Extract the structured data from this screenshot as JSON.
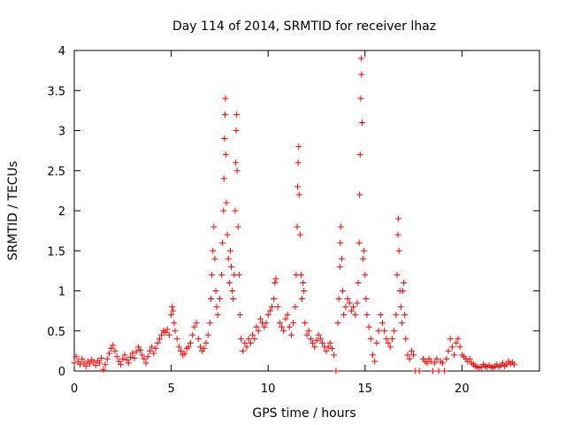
{
  "chart_data": {
    "type": "scatter",
    "title": "Day 114 of 2014, SRMTID for receiver lhaz",
    "xlabel": "GPS time / hours",
    "ylabel": "SRMTID / TECUs",
    "xlim": [
      0,
      24
    ],
    "ylim": [
      0,
      4
    ],
    "xticks": [
      0,
      5,
      10,
      15,
      20
    ],
    "xtick_labels": [
      "0",
      "5",
      "10",
      "15",
      "20"
    ],
    "yticks": [
      0,
      0.5,
      1,
      1.5,
      2,
      2.5,
      3,
      3.5,
      4
    ],
    "ytick_labels": [
      "0",
      "0.5",
      "1",
      "1.5",
      "2",
      "2.5",
      "3",
      "3.5",
      "4"
    ],
    "grid": false,
    "marker": "+",
    "marker_color": "#ff0000",
    "series": [
      {
        "name": "SRMTID",
        "points": [
          [
            0.0,
            0.1
          ],
          [
            0.1,
            0.18
          ],
          [
            0.2,
            0.12
          ],
          [
            0.3,
            0.08
          ],
          [
            0.4,
            0.15
          ],
          [
            0.5,
            0.1
          ],
          [
            0.6,
            0.06
          ],
          [
            0.7,
            0.12
          ],
          [
            0.8,
            0.09
          ],
          [
            0.9,
            0.14
          ],
          [
            1.0,
            0.11
          ],
          [
            1.1,
            0.07
          ],
          [
            1.2,
            0.13
          ],
          [
            1.3,
            0.1
          ],
          [
            1.4,
            0.16
          ],
          [
            1.5,
            0.02
          ],
          [
            1.6,
            0.08
          ],
          [
            1.7,
            0.15
          ],
          [
            1.8,
            0.22
          ],
          [
            1.9,
            0.28
          ],
          [
            2.0,
            0.32
          ],
          [
            2.1,
            0.25
          ],
          [
            2.2,
            0.18
          ],
          [
            2.3,
            0.12
          ],
          [
            2.4,
            0.08
          ],
          [
            2.5,
            0.15
          ],
          [
            2.6,
            0.2
          ],
          [
            2.7,
            0.14
          ],
          [
            2.8,
            0.1
          ],
          [
            2.9,
            0.17
          ],
          [
            3.0,
            0.22
          ],
          [
            3.1,
            0.16
          ],
          [
            3.2,
            0.24
          ],
          [
            3.3,
            0.3
          ],
          [
            3.4,
            0.26
          ],
          [
            3.5,
            0.2
          ],
          [
            3.6,
            0.15
          ],
          [
            3.7,
            0.1
          ],
          [
            3.8,
            0.18
          ],
          [
            3.9,
            0.25
          ],
          [
            4.0,
            0.3
          ],
          [
            4.1,
            0.22
          ],
          [
            4.2,
            0.28
          ],
          [
            4.3,
            0.35
          ],
          [
            4.4,
            0.4
          ],
          [
            4.5,
            0.45
          ],
          [
            4.6,
            0.5
          ],
          [
            4.7,
            0.48
          ],
          [
            4.8,
            0.52
          ],
          [
            4.9,
            0.45
          ],
          [
            5.0,
            0.7
          ],
          [
            5.05,
            0.8
          ],
          [
            5.1,
            0.75
          ],
          [
            5.15,
            0.6
          ],
          [
            5.2,
            0.5
          ],
          [
            5.3,
            0.4
          ],
          [
            5.4,
            0.3
          ],
          [
            5.5,
            0.25
          ],
          [
            5.6,
            0.2
          ],
          [
            5.7,
            0.22
          ],
          [
            5.8,
            0.28
          ],
          [
            5.9,
            0.3
          ],
          [
            6.0,
            0.35
          ],
          [
            6.1,
            0.45
          ],
          [
            6.2,
            0.55
          ],
          [
            6.3,
            0.6
          ],
          [
            6.4,
            0.4
          ],
          [
            6.5,
            0.3
          ],
          [
            6.6,
            0.25
          ],
          [
            6.7,
            0.28
          ],
          [
            6.8,
            0.35
          ],
          [
            6.9,
            0.45
          ],
          [
            7.0,
            0.6
          ],
          [
            7.05,
            0.9
          ],
          [
            7.1,
            1.2
          ],
          [
            7.15,
            1.5
          ],
          [
            7.2,
            1.8
          ],
          [
            7.25,
            1.4
          ],
          [
            7.3,
            1.0
          ],
          [
            7.35,
            0.8
          ],
          [
            7.4,
            0.7
          ],
          [
            7.5,
            0.9
          ],
          [
            7.6,
            1.2
          ],
          [
            7.65,
            1.6
          ],
          [
            7.7,
            2.0
          ],
          [
            7.72,
            2.4
          ],
          [
            7.75,
            2.9
          ],
          [
            7.78,
            3.2
          ],
          [
            7.8,
            3.4
          ],
          [
            7.82,
            2.7
          ],
          [
            7.85,
            2.1
          ],
          [
            7.9,
            1.7
          ],
          [
            7.95,
            1.4
          ],
          [
            8.0,
            1.1
          ],
          [
            8.05,
            1.5
          ],
          [
            8.1,
            1.3
          ],
          [
            8.15,
            1.0
          ],
          [
            8.2,
            0.9
          ],
          [
            8.25,
            1.2
          ],
          [
            8.3,
            2.0
          ],
          [
            8.32,
            2.6
          ],
          [
            8.35,
            3.0
          ],
          [
            8.38,
            3.2
          ],
          [
            8.4,
            2.5
          ],
          [
            8.45,
            1.8
          ],
          [
            8.5,
            1.2
          ],
          [
            8.55,
            0.7
          ],
          [
            8.6,
            0.4
          ],
          [
            8.7,
            0.25
          ],
          [
            8.8,
            0.35
          ],
          [
            8.9,
            0.3
          ],
          [
            9.0,
            0.4
          ],
          [
            9.1,
            0.35
          ],
          [
            9.2,
            0.45
          ],
          [
            9.3,
            0.4
          ],
          [
            9.4,
            0.55
          ],
          [
            9.5,
            0.5
          ],
          [
            9.6,
            0.65
          ],
          [
            9.7,
            0.6
          ],
          [
            9.8,
            0.55
          ],
          [
            9.9,
            0.6
          ],
          [
            10.0,
            0.7
          ],
          [
            10.1,
            0.75
          ],
          [
            10.2,
            0.8
          ],
          [
            10.3,
            0.9
          ],
          [
            10.35,
            1.1
          ],
          [
            10.4,
            1.15
          ],
          [
            10.5,
            0.8
          ],
          [
            10.6,
            0.6
          ],
          [
            10.7,
            0.55
          ],
          [
            10.8,
            0.5
          ],
          [
            10.9,
            0.65
          ],
          [
            11.0,
            0.7
          ],
          [
            11.1,
            0.55
          ],
          [
            11.2,
            0.45
          ],
          [
            11.3,
            0.6
          ],
          [
            11.4,
            0.8
          ],
          [
            11.45,
            1.2
          ],
          [
            11.5,
            1.8
          ],
          [
            11.52,
            2.3
          ],
          [
            11.55,
            2.6
          ],
          [
            11.58,
            2.8
          ],
          [
            11.6,
            2.2
          ],
          [
            11.65,
            1.7
          ],
          [
            11.7,
            1.2
          ],
          [
            11.75,
            0.9
          ],
          [
            11.8,
            1.1
          ],
          [
            11.85,
            1.0
          ],
          [
            11.9,
            0.6
          ],
          [
            12.0,
            0.45
          ],
          [
            12.1,
            0.5
          ],
          [
            12.2,
            0.4
          ],
          [
            12.3,
            0.35
          ],
          [
            12.4,
            0.3
          ],
          [
            12.5,
            0.38
          ],
          [
            12.6,
            0.45
          ],
          [
            12.7,
            0.4
          ],
          [
            12.8,
            0.35
          ],
          [
            12.9,
            0.3
          ],
          [
            13.0,
            0.25
          ],
          [
            13.1,
            0.3
          ],
          [
            13.2,
            0.35
          ],
          [
            13.3,
            0.28
          ],
          [
            13.4,
            0.2
          ],
          [
            13.5,
            0.0
          ],
          [
            13.6,
            0.6
          ],
          [
            13.65,
            0.9
          ],
          [
            13.7,
            1.3
          ],
          [
            13.72,
            1.6
          ],
          [
            13.75,
            1.8
          ],
          [
            13.8,
            1.4
          ],
          [
            13.85,
            1.0
          ],
          [
            13.9,
            0.7
          ],
          [
            14.0,
            0.8
          ],
          [
            14.1,
            0.9
          ],
          [
            14.2,
            0.85
          ],
          [
            14.3,
            0.75
          ],
          [
            14.4,
            0.8
          ],
          [
            14.5,
            0.7
          ],
          [
            14.6,
            0.85
          ],
          [
            14.65,
            1.1
          ],
          [
            14.7,
            1.6
          ],
          [
            14.72,
            2.2
          ],
          [
            14.75,
            2.7
          ],
          [
            14.78,
            3.4
          ],
          [
            14.8,
            3.9
          ],
          [
            14.82,
            3.7
          ],
          [
            14.85,
            3.1
          ],
          [
            14.9,
            1.4
          ],
          [
            14.95,
            1.5
          ],
          [
            15.0,
            1.2
          ],
          [
            15.05,
            0.9
          ],
          [
            15.1,
            0.7
          ],
          [
            15.2,
            0.55
          ],
          [
            15.3,
            0.4
          ],
          [
            15.4,
            0.2
          ],
          [
            15.5,
            0.12
          ],
          [
            15.6,
            0.35
          ],
          [
            15.7,
            0.5
          ],
          [
            15.8,
            0.7
          ],
          [
            15.9,
            0.6
          ],
          [
            16.0,
            0.5
          ],
          [
            16.1,
            0.4
          ],
          [
            16.2,
            0.35
          ],
          [
            16.3,
            0.3
          ],
          [
            16.4,
            0.4
          ],
          [
            16.5,
            0.5
          ],
          [
            16.6,
            0.7
          ],
          [
            16.65,
            1.2
          ],
          [
            16.7,
            1.7
          ],
          [
            16.72,
            1.9
          ],
          [
            16.75,
            1.5
          ],
          [
            16.8,
            1.0
          ],
          [
            16.85,
            0.8
          ],
          [
            16.9,
            0.6
          ],
          [
            16.95,
            1.0
          ],
          [
            17.0,
            1.1
          ],
          [
            17.05,
            0.7
          ],
          [
            17.1,
            0.4
          ],
          [
            17.2,
            0.2
          ],
          [
            17.3,
            0.15
          ],
          [
            17.4,
            0.25
          ],
          [
            17.5,
            0.2
          ],
          [
            17.6,
            0.0
          ],
          [
            17.8,
            0.0
          ],
          [
            18.0,
            0.15
          ],
          [
            18.1,
            0.12
          ],
          [
            18.2,
            0.1
          ],
          [
            18.3,
            0.15
          ],
          [
            18.4,
            0.12
          ],
          [
            18.5,
            0.0
          ],
          [
            18.6,
            0.1
          ],
          [
            18.7,
            0.15
          ],
          [
            18.8,
            0.0
          ],
          [
            18.9,
            0.12
          ],
          [
            19.0,
            0.1
          ],
          [
            19.1,
            0.0
          ],
          [
            19.2,
            0.15
          ],
          [
            19.3,
            0.25
          ],
          [
            19.4,
            0.4
          ],
          [
            19.5,
            0.3
          ],
          [
            19.6,
            0.2
          ],
          [
            19.7,
            0.35
          ],
          [
            19.8,
            0.4
          ],
          [
            19.9,
            0.3
          ],
          [
            20.0,
            0.2
          ],
          [
            20.1,
            0.18
          ],
          [
            20.2,
            0.15
          ],
          [
            20.3,
            0.12
          ],
          [
            20.4,
            0.15
          ],
          [
            20.5,
            0.1
          ],
          [
            20.6,
            0.08
          ],
          [
            20.7,
            0.06
          ],
          [
            20.8,
            0.05
          ],
          [
            20.9,
            0.04
          ],
          [
            21.0,
            0.05
          ],
          [
            21.1,
            0.08
          ],
          [
            21.2,
            0.06
          ],
          [
            21.3,
            0.05
          ],
          [
            21.4,
            0.07
          ],
          [
            21.5,
            0.05
          ],
          [
            21.6,
            0.04
          ],
          [
            21.7,
            0.06
          ],
          [
            21.8,
            0.08
          ],
          [
            21.9,
            0.05
          ],
          [
            22.0,
            0.07
          ],
          [
            22.1,
            0.1
          ],
          [
            22.2,
            0.06
          ],
          [
            22.3,
            0.08
          ],
          [
            22.4,
            0.12
          ],
          [
            22.5,
            0.09
          ],
          [
            22.6,
            0.11
          ],
          [
            22.7,
            0.08
          ]
        ]
      }
    ]
  }
}
